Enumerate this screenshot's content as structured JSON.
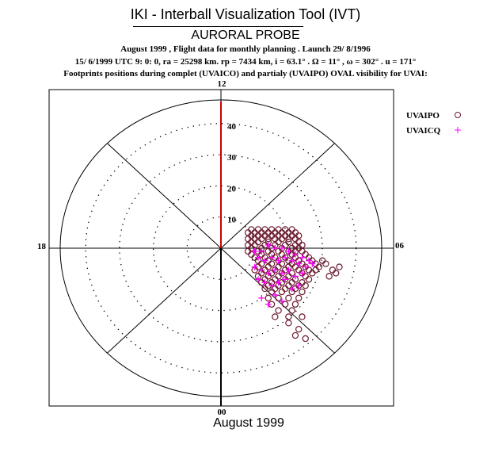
{
  "header": {
    "title": "IKI - Interball Visualization Tool (IVT)",
    "probe": "AURORAL PROBE",
    "line1": "August 1999 ,  Flight data for monthly planning .   Launch 29/ 8/1996",
    "line2": "15/ 6/1999 UTC  9: 0: 0, ra =  25298 km. rp =    7434 km, i = 63.1° . Ω =  11° , ω = 302° . u = 171°",
    "line3": "Footprints positions during complet (UVAICO) and partialy (UVAIPO) OVAL visibility for UVAI:"
  },
  "footer": "August 1999",
  "chart_data": {
    "type": "scatter",
    "projection": "polar (MLT / colatitude)",
    "mlt_labels": {
      "top": "12",
      "right": "06",
      "bottom": "00",
      "left": "18"
    },
    "radial_ticks": [
      10,
      20,
      30,
      40
    ],
    "radial_tick_labels": [
      "10",
      "20",
      "30",
      "40"
    ],
    "legend_position": "top-right",
    "colors": {
      "UVAIPO": "#6b1a2e",
      "UVAICQ": "#ff00ff",
      "meridian": "#cc0000"
    },
    "series": [
      {
        "name": "UVAIPO",
        "marker": "circle",
        "points": [
          [
            9,
            6
          ],
          [
            11,
            6
          ],
          [
            13,
            6
          ],
          [
            15,
            6
          ],
          [
            17,
            6
          ],
          [
            19,
            6
          ],
          [
            21,
            6
          ],
          [
            8,
            5
          ],
          [
            10,
            5
          ],
          [
            12,
            5
          ],
          [
            14,
            5
          ],
          [
            16,
            5
          ],
          [
            18,
            5
          ],
          [
            20,
            5
          ],
          [
            22,
            5
          ],
          [
            9,
            4
          ],
          [
            11,
            4
          ],
          [
            13,
            4
          ],
          [
            15,
            4
          ],
          [
            17,
            4
          ],
          [
            19,
            4
          ],
          [
            21,
            4
          ],
          [
            23,
            4
          ],
          [
            8,
            3
          ],
          [
            10,
            3
          ],
          [
            12,
            3
          ],
          [
            14,
            3
          ],
          [
            16,
            3
          ],
          [
            18,
            3
          ],
          [
            20,
            3
          ],
          [
            22,
            3
          ],
          [
            9,
            2
          ],
          [
            11,
            2
          ],
          [
            14,
            2
          ],
          [
            17,
            2
          ],
          [
            20,
            2
          ],
          [
            23,
            2
          ],
          [
            8,
            1
          ],
          [
            10,
            1
          ],
          [
            13,
            1
          ],
          [
            16,
            1
          ],
          [
            19,
            1
          ],
          [
            22,
            1
          ],
          [
            24,
            1
          ],
          [
            9,
            0
          ],
          [
            12,
            0
          ],
          [
            15,
            0
          ],
          [
            18,
            0
          ],
          [
            21,
            0
          ],
          [
            23,
            0
          ],
          [
            8,
            -1
          ],
          [
            11,
            -1
          ],
          [
            14,
            -1
          ],
          [
            17,
            -1
          ],
          [
            20,
            -1
          ],
          [
            22,
            -1
          ],
          [
            24,
            -1
          ],
          [
            9,
            -2
          ],
          [
            12,
            -2
          ],
          [
            15,
            -2
          ],
          [
            18,
            -2
          ],
          [
            21,
            -2
          ],
          [
            25,
            -2
          ],
          [
            10,
            -3
          ],
          [
            13,
            -3
          ],
          [
            16,
            -3
          ],
          [
            19,
            -3
          ],
          [
            22,
            -3
          ],
          [
            26,
            -3
          ],
          [
            11,
            -4
          ],
          [
            14,
            -4
          ],
          [
            17,
            -4
          ],
          [
            20,
            -4
          ],
          [
            23,
            -4
          ],
          [
            27,
            -4
          ],
          [
            30,
            -4
          ],
          [
            12,
            -5
          ],
          [
            15,
            -5
          ],
          [
            18,
            -5
          ],
          [
            21,
            -5
          ],
          [
            24,
            -5
          ],
          [
            28,
            -5
          ],
          [
            31,
            -5
          ],
          [
            35,
            -6
          ],
          [
            11,
            -6
          ],
          [
            14,
            -6
          ],
          [
            17,
            -6
          ],
          [
            20,
            -6
          ],
          [
            22,
            -6
          ],
          [
            25,
            -6
          ],
          [
            29,
            -6
          ],
          [
            33,
            -7
          ],
          [
            10,
            -7
          ],
          [
            13,
            -7
          ],
          [
            16,
            -7
          ],
          [
            19,
            -7
          ],
          [
            23,
            -7
          ],
          [
            26,
            -7
          ],
          [
            28,
            -7
          ],
          [
            34,
            -8
          ],
          [
            12,
            -8
          ],
          [
            15,
            -8
          ],
          [
            18,
            -8
          ],
          [
            21,
            -8
          ],
          [
            24,
            -8
          ],
          [
            27,
            -8
          ],
          [
            32,
            -9
          ],
          [
            11,
            -9
          ],
          [
            14,
            -9
          ],
          [
            17,
            -9
          ],
          [
            20,
            -9
          ],
          [
            25,
            -9
          ],
          [
            13,
            -10
          ],
          [
            16,
            -10
          ],
          [
            19,
            -10
          ],
          [
            22,
            -10
          ],
          [
            26,
            -10
          ],
          [
            12,
            -11
          ],
          [
            15,
            -11
          ],
          [
            18,
            -11
          ],
          [
            21,
            -11
          ],
          [
            24,
            -11
          ],
          [
            14,
            -12
          ],
          [
            17,
            -12
          ],
          [
            20,
            -12
          ],
          [
            23,
            -12
          ],
          [
            25,
            -12
          ],
          [
            13,
            -13
          ],
          [
            16,
            -13
          ],
          [
            19,
            -13
          ],
          [
            22,
            -13
          ],
          [
            15,
            -14
          ],
          [
            18,
            -14
          ],
          [
            21,
            -14
          ],
          [
            24,
            -14
          ],
          [
            14,
            -16
          ],
          [
            17,
            -16
          ],
          [
            20,
            -16
          ],
          [
            23,
            -16
          ],
          [
            15,
            -18
          ],
          [
            19,
            -18
          ],
          [
            22,
            -18
          ],
          [
            17,
            -20
          ],
          [
            21,
            -20
          ],
          [
            16,
            -22
          ],
          [
            20,
            -22
          ],
          [
            24,
            -22
          ],
          [
            20,
            -24
          ],
          [
            23,
            -26
          ],
          [
            22,
            -28
          ],
          [
            25,
            -29
          ]
        ]
      },
      {
        "name": "UVAICQ",
        "marker": "plus",
        "points": [
          [
            10,
            -1
          ],
          [
            12,
            -1
          ],
          [
            14,
            1
          ],
          [
            16,
            0
          ],
          [
            18,
            0
          ],
          [
            20,
            -1
          ],
          [
            22,
            -2
          ],
          [
            24,
            -3
          ],
          [
            11,
            -3
          ],
          [
            13,
            -4
          ],
          [
            15,
            -3
          ],
          [
            17,
            -4
          ],
          [
            19,
            -3
          ],
          [
            21,
            -4
          ],
          [
            23,
            -5
          ],
          [
            25,
            -6
          ],
          [
            10,
            -6
          ],
          [
            12,
            -7
          ],
          [
            14,
            -8
          ],
          [
            16,
            -7
          ],
          [
            18,
            -8
          ],
          [
            20,
            -7
          ],
          [
            22,
            -9
          ],
          [
            24,
            -8
          ],
          [
            11,
            -10
          ],
          [
            13,
            -11
          ],
          [
            15,
            -12
          ],
          [
            17,
            -11
          ],
          [
            19,
            -10
          ],
          [
            21,
            -13
          ],
          [
            23,
            -12
          ],
          [
            12,
            -16
          ],
          [
            14,
            -18
          ],
          [
            16,
            -15
          ],
          [
            18,
            -17
          ],
          [
            26,
            -4
          ],
          [
            27,
            -5
          ]
        ]
      }
    ]
  }
}
